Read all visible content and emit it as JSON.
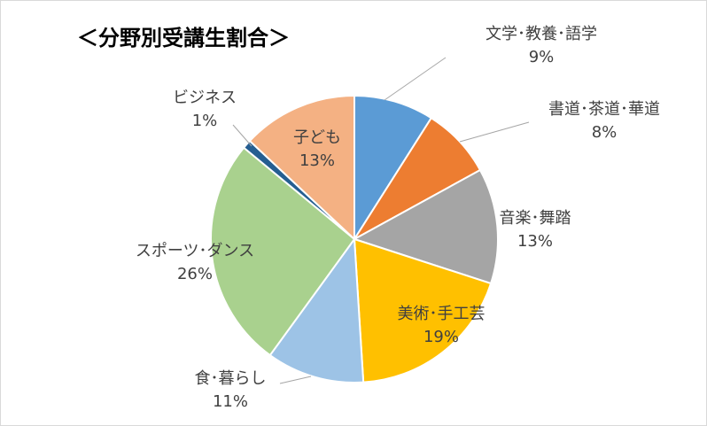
{
  "chart_data": {
    "type": "pie",
    "title": "＜分野別受講生割合＞",
    "categories": [
      "文学･教養･語学",
      "書道･茶道･華道",
      "音楽･舞踏",
      "美術･手工芸",
      "食･暮らし",
      "スポーツ･ダンス",
      "ビジネス",
      "子ども"
    ],
    "values": [
      9,
      8,
      13,
      19,
      11,
      26,
      1,
      13
    ],
    "value_labels": [
      "9%",
      "8%",
      "13%",
      "19%",
      "11%",
      "26%",
      "1%",
      "13%"
    ],
    "colors": [
      "#5b9bd5",
      "#ed7d31",
      "#a5a5a5",
      "#ffc000",
      "#9dc3e6",
      "#a9d18e",
      "#255e91",
      "#f4b183"
    ],
    "start_angle": "12 o'clock, clockwise",
    "legend": "none",
    "data_labels": "category name and percentage"
  }
}
